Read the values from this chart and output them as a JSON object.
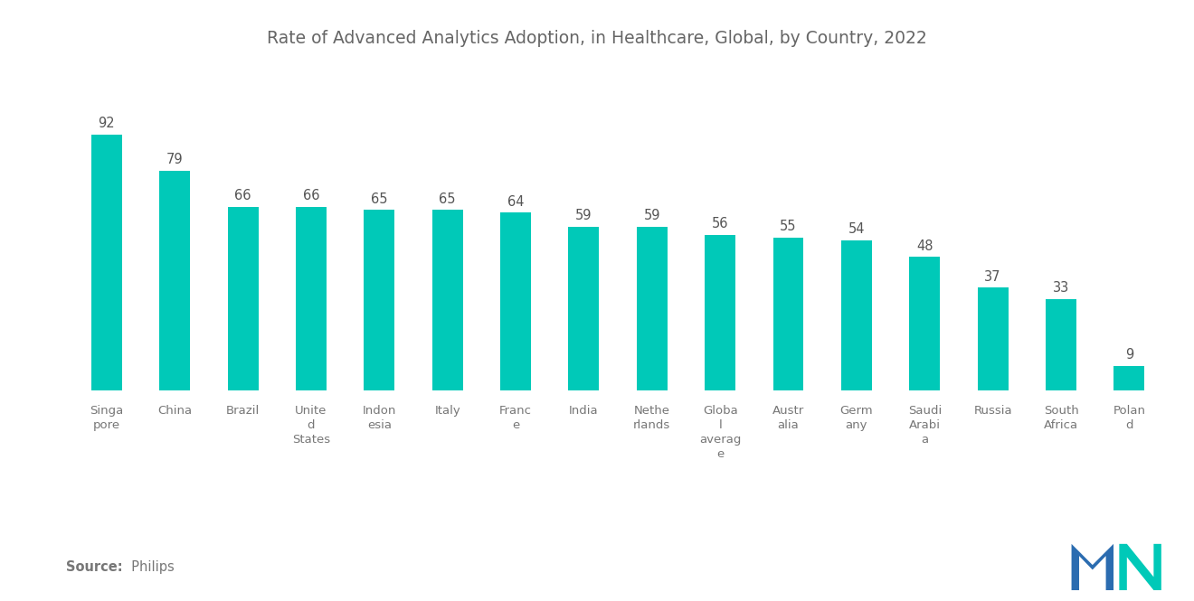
{
  "title": "Rate of Advanced Analytics Adoption, in Healthcare, Global, by Country, 2022",
  "categories": [
    "Singa\npore",
    "China",
    "Brazil",
    "Unite\nd\nStates",
    "Indon\nesia",
    "Italy",
    "Franc\ne",
    "India",
    "Nethe\nrlands",
    "Globa\nl\naverag\ne",
    "Austr\nalia",
    "Germ\nany",
    "Saudi\nArabi\na",
    "Russia",
    "South\nAfrica",
    "Polan\nd"
  ],
  "values": [
    92,
    79,
    66,
    66,
    65,
    65,
    64,
    59,
    59,
    56,
    55,
    54,
    48,
    37,
    33,
    9
  ],
  "bar_color": "#00C9B8",
  "background_color": "#ffffff",
  "title_color": "#666666",
  "label_color": "#777777",
  "value_color": "#555555",
  "source_bold": "Source:",
  "source_normal": "  Philips",
  "title_fontsize": 13.5,
  "label_fontsize": 9.5,
  "value_fontsize": 10.5,
  "source_fontsize": 10.5,
  "bar_width": 0.45,
  "ylim": [
    0,
    108
  ]
}
